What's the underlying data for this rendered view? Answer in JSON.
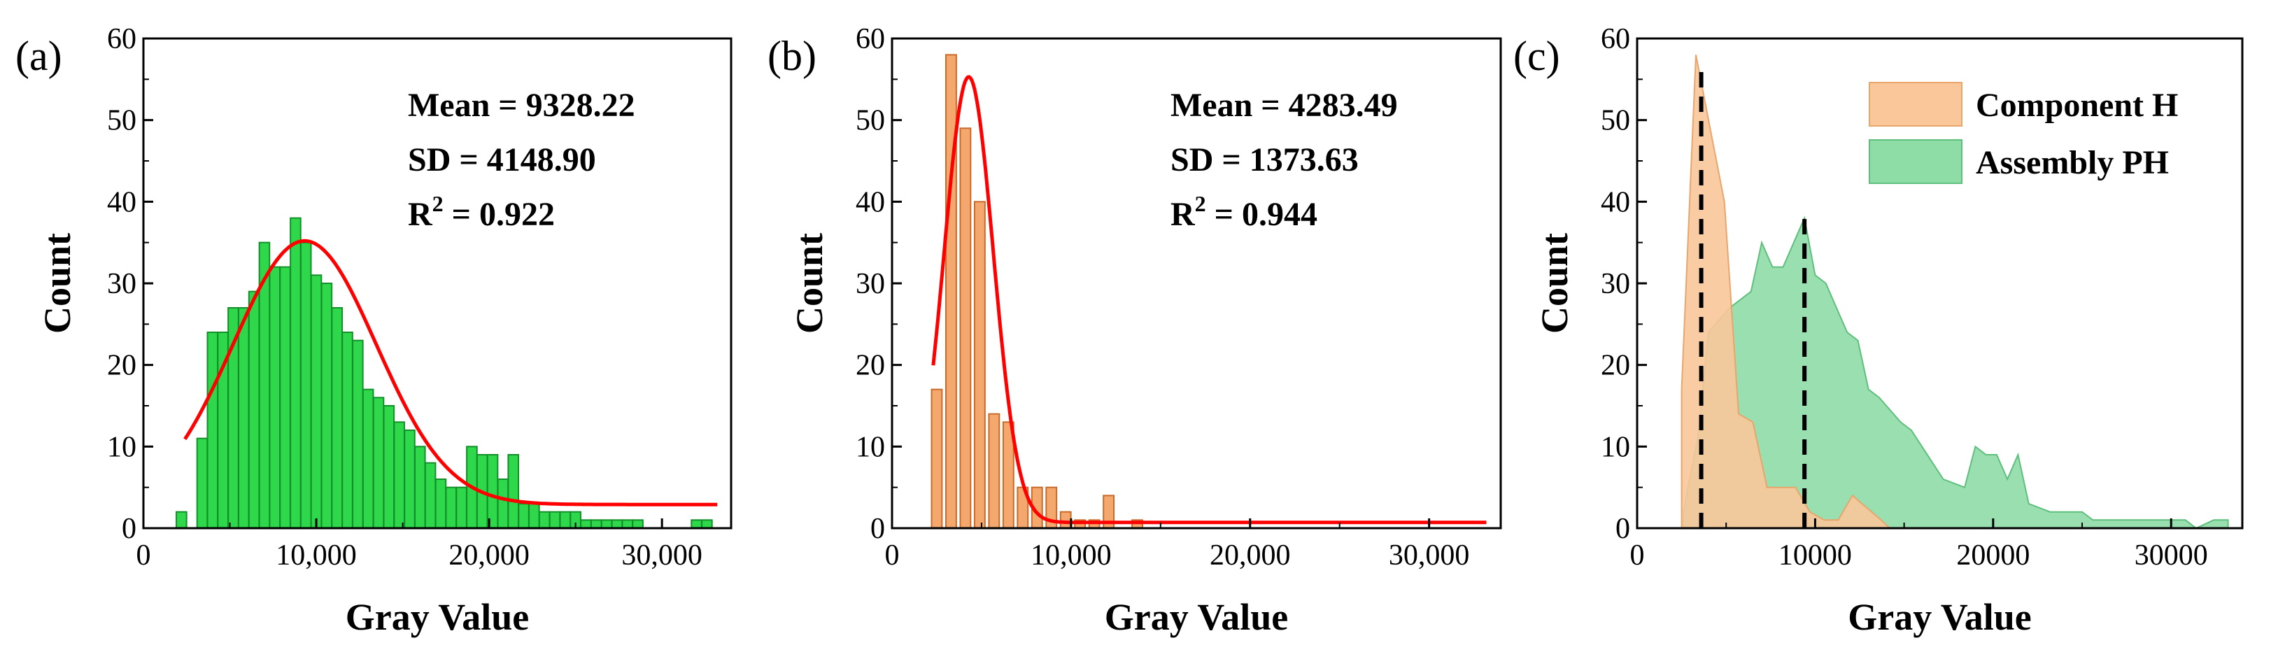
{
  "chart_data": [
    {
      "panel_label": "(a)",
      "type": "bar",
      "xlabel": "Gray Value",
      "ylabel": "Count",
      "xlim": [
        0,
        34000
      ],
      "ylim": [
        0,
        60
      ],
      "xticks": [
        0,
        10000,
        20000,
        30000
      ],
      "xtick_labels": [
        "0",
        "10,000",
        "20,000",
        "30,000"
      ],
      "yticks": [
        0,
        10,
        20,
        30,
        40,
        50,
        60
      ],
      "ytick_labels": [
        "0",
        "10",
        "20",
        "30",
        "40",
        "50",
        "60"
      ],
      "bin_width": 590,
      "bar_color": "#2ed84a",
      "bar_edge": "#138f2a",
      "bins": [
        {
          "x": 2200,
          "count": 2
        },
        {
          "x": 3400,
          "count": 11
        },
        {
          "x": 4000,
          "count": 24
        },
        {
          "x": 4600,
          "count": 24
        },
        {
          "x": 5200,
          "count": 27
        },
        {
          "x": 5800,
          "count": 27
        },
        {
          "x": 6400,
          "count": 29
        },
        {
          "x": 7000,
          "count": 35
        },
        {
          "x": 7600,
          "count": 32
        },
        {
          "x": 8200,
          "count": 32
        },
        {
          "x": 8800,
          "count": 38
        },
        {
          "x": 9400,
          "count": 35
        },
        {
          "x": 10000,
          "count": 31
        },
        {
          "x": 10600,
          "count": 30
        },
        {
          "x": 11200,
          "count": 27
        },
        {
          "x": 11800,
          "count": 24
        },
        {
          "x": 12400,
          "count": 23
        },
        {
          "x": 13000,
          "count": 17
        },
        {
          "x": 13600,
          "count": 16
        },
        {
          "x": 14200,
          "count": 15
        },
        {
          "x": 14800,
          "count": 13
        },
        {
          "x": 15400,
          "count": 12
        },
        {
          "x": 16000,
          "count": 10
        },
        {
          "x": 16600,
          "count": 8
        },
        {
          "x": 17200,
          "count": 6
        },
        {
          "x": 17800,
          "count": 5
        },
        {
          "x": 18400,
          "count": 5
        },
        {
          "x": 19000,
          "count": 10
        },
        {
          "x": 19600,
          "count": 9
        },
        {
          "x": 20200,
          "count": 9
        },
        {
          "x": 20800,
          "count": 6
        },
        {
          "x": 21400,
          "count": 9
        },
        {
          "x": 22000,
          "count": 3
        },
        {
          "x": 22600,
          "count": 3
        },
        {
          "x": 23200,
          "count": 2
        },
        {
          "x": 23800,
          "count": 2
        },
        {
          "x": 24400,
          "count": 2
        },
        {
          "x": 25000,
          "count": 2
        },
        {
          "x": 25600,
          "count": 1
        },
        {
          "x": 26200,
          "count": 1
        },
        {
          "x": 26800,
          "count": 1
        },
        {
          "x": 27400,
          "count": 1
        },
        {
          "x": 28000,
          "count": 1
        },
        {
          "x": 28600,
          "count": 1
        },
        {
          "x": 32000,
          "count": 1
        },
        {
          "x": 32600,
          "count": 1
        }
      ],
      "fit": {
        "mean": 9328.22,
        "sd": 4148.9,
        "peak": 35.2,
        "offset": 2.9,
        "x_start": 2400,
        "x_end": 33200,
        "color": "#ff0000"
      },
      "stats": {
        "mean_label": "Mean = 9328.22",
        "sd_label": "SD = 4148.90",
        "r2_prefix": "R",
        "r2_sup": "2",
        "r2_suffix": " = 0.922"
      }
    },
    {
      "panel_label": "(b)",
      "type": "bar",
      "xlabel": "Gray Value",
      "ylabel": "Count",
      "xlim": [
        0,
        34000
      ],
      "ylim": [
        0,
        60
      ],
      "xticks": [
        0,
        10000,
        20000,
        30000
      ],
      "xtick_labels": [
        "0",
        "10,000",
        "20,000",
        "30,000"
      ],
      "yticks": [
        0,
        10,
        20,
        30,
        40,
        50,
        60
      ],
      "ytick_labels": [
        "0",
        "10",
        "20",
        "30",
        "40",
        "50",
        "60"
      ],
      "bin_width": 580,
      "bar_color": "#f5a86e",
      "bar_edge": "#c86a2a",
      "bins": [
        {
          "x": 2500,
          "count": 17
        },
        {
          "x": 3300,
          "count": 58
        },
        {
          "x": 4100,
          "count": 49
        },
        {
          "x": 4900,
          "count": 40
        },
        {
          "x": 5700,
          "count": 14
        },
        {
          "x": 6500,
          "count": 13
        },
        {
          "x": 7300,
          "count": 5
        },
        {
          "x": 8100,
          "count": 5
        },
        {
          "x": 8900,
          "count": 5
        },
        {
          "x": 9700,
          "count": 2
        },
        {
          "x": 10500,
          "count": 1
        },
        {
          "x": 11300,
          "count": 1
        },
        {
          "x": 12100,
          "count": 4
        },
        {
          "x": 13700,
          "count": 1
        }
      ],
      "fit": {
        "mean": 4283.49,
        "sd": 1373.63,
        "peak": 55.3,
        "offset": 0.7,
        "x_start": 2300,
        "x_end": 33200,
        "color": "#ff0000"
      },
      "stats": {
        "mean_label": "Mean = 4283.49",
        "sd_label": "SD = 1373.63",
        "r2_prefix": "R",
        "r2_sup": "2",
        "r2_suffix": " = 0.944"
      }
    },
    {
      "panel_label": "(c)",
      "type": "area",
      "xlabel": "Gray Value",
      "ylabel": "Count",
      "xlim": [
        0,
        34000
      ],
      "ylim": [
        0,
        60
      ],
      "xticks": [
        0,
        10000,
        20000,
        30000
      ],
      "xtick_labels": [
        "0",
        "10000",
        "20000",
        "30000"
      ],
      "yticks": [
        0,
        10,
        20,
        30,
        40,
        50,
        60
      ],
      "ytick_labels": [
        "0",
        "10",
        "20",
        "30",
        "40",
        "50",
        "60"
      ],
      "series": [
        {
          "name": "Assembly PH",
          "fill": "#8edca6",
          "stroke": "#5fbf7c",
          "points": [
            [
              2600,
              2
            ],
            [
              3400,
              11
            ],
            [
              4000,
              24
            ],
            [
              5200,
              27
            ],
            [
              6400,
              29
            ],
            [
              7000,
              35
            ],
            [
              7600,
              32
            ],
            [
              8200,
              32
            ],
            [
              9400,
              38
            ],
            [
              10000,
              31
            ],
            [
              10600,
              30
            ],
            [
              11200,
              27
            ],
            [
              11800,
              24
            ],
            [
              12400,
              23
            ],
            [
              13000,
              17
            ],
            [
              13600,
              16
            ],
            [
              14800,
              13
            ],
            [
              15400,
              12
            ],
            [
              16000,
              10
            ],
            [
              16600,
              8
            ],
            [
              17200,
              6
            ],
            [
              18400,
              5
            ],
            [
              19000,
              10
            ],
            [
              19600,
              9
            ],
            [
              20200,
              9
            ],
            [
              20800,
              6
            ],
            [
              21400,
              9
            ],
            [
              22000,
              3
            ],
            [
              23200,
              2
            ],
            [
              25000,
              2
            ],
            [
              25600,
              1
            ],
            [
              28600,
              1
            ],
            [
              30800,
              1
            ],
            [
              31400,
              0
            ],
            [
              32400,
              1
            ],
            [
              33200,
              1
            ]
          ]
        },
        {
          "name": "Component H",
          "fill": "#fac79a",
          "stroke": "#e8a56c",
          "points": [
            [
              2500,
              17
            ],
            [
              3300,
              58
            ],
            [
              4100,
              49
            ],
            [
              4900,
              40
            ],
            [
              5700,
              14
            ],
            [
              6500,
              13
            ],
            [
              7300,
              5
            ],
            [
              8100,
              5
            ],
            [
              8900,
              5
            ],
            [
              9700,
              2
            ],
            [
              10500,
              1
            ],
            [
              11300,
              1
            ],
            [
              12100,
              4
            ],
            [
              13700,
              1
            ],
            [
              14200,
              0
            ]
          ]
        }
      ],
      "dashed_lines": [
        {
          "x": 3600,
          "y_top": 57
        },
        {
          "x": 9400,
          "y_top": 38
        }
      ],
      "legend_position": "top-right"
    }
  ]
}
